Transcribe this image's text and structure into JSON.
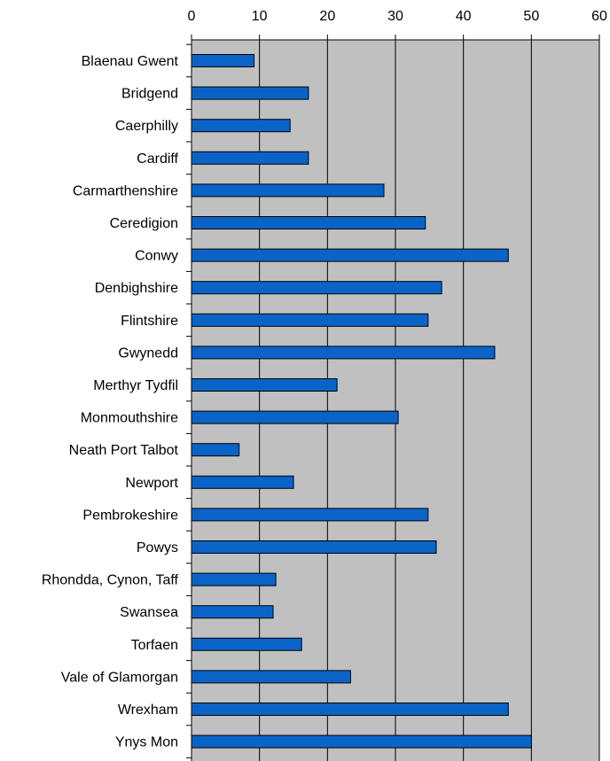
{
  "chart_data": {
    "type": "bar",
    "orientation": "horizontal",
    "title": "",
    "xlabel": "",
    "ylabel": "",
    "xlim": [
      0,
      60
    ],
    "x_ticks": [
      0,
      10,
      20,
      30,
      40,
      50,
      60
    ],
    "x_axis_position": "top",
    "grid": true,
    "legend": "none",
    "categories": [
      "Blaenau Gwent",
      "Bridgend",
      "Caerphilly",
      "Cardiff",
      "Carmarthenshire",
      "Ceredigion",
      "Conwy",
      "Denbighshire",
      "Flintshire",
      "Gwynedd",
      "Merthyr Tydfil",
      "Monmouthshire",
      "Neath Port Talbot",
      "Newport",
      "Pembrokeshire",
      "Powys",
      "Rhondda, Cynon, Taff",
      "Swansea",
      "Torfaen",
      "Vale of Glamorgan",
      "Wrexham",
      "Ynys Mon"
    ],
    "values": [
      9.2,
      17.2,
      14.5,
      17.2,
      28.3,
      34.4,
      46.6,
      36.8,
      34.8,
      44.6,
      21.4,
      30.4,
      7.0,
      15.0,
      34.8,
      36.0,
      12.4,
      12.0,
      16.2,
      23.4,
      46.6,
      50.0
    ],
    "colors": {
      "bar_fill": "#0a64c8",
      "bar_stroke": "#000000",
      "plot_background": "#c0c0c0",
      "gridline": "#000000"
    }
  }
}
